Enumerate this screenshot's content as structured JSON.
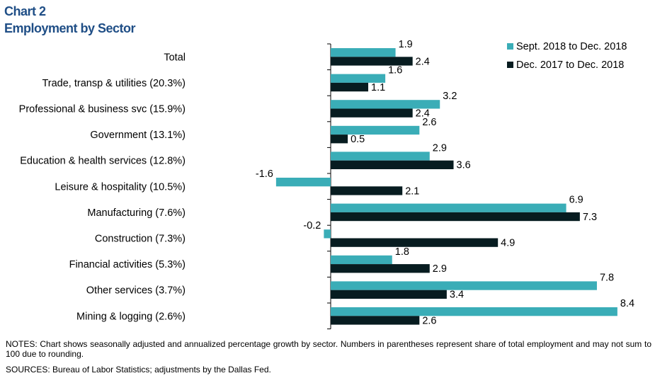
{
  "chart_data": {
    "type": "bar",
    "orientation": "horizontal",
    "title": "Chart 2",
    "subtitle": "Employment by Sector",
    "categories": [
      "Total",
      "Trade, transp & utilities (20.3%)",
      "Professional & business svc (15.9%)",
      "Government (13.1%)",
      "Education & health services (12.8%)",
      "Leisure & hospitality (10.5%)",
      "Manufacturing (7.6%)",
      "Construction (7.3%)",
      "Financial activities (5.3%)",
      "Other services (3.7%)",
      "Mining & logging (2.6%)"
    ],
    "series": [
      {
        "name": "Sept. 2018 to Dec. 2018",
        "color": "#3AADB7",
        "values": [
          1.9,
          1.6,
          3.2,
          2.6,
          2.9,
          -1.6,
          6.9,
          -0.2,
          1.8,
          7.8,
          8.4
        ]
      },
      {
        "name": "Dec. 2017 to Dec. 2018",
        "color": "#071C20",
        "values": [
          2.4,
          1.1,
          2.4,
          0.5,
          3.6,
          2.1,
          7.3,
          4.9,
          2.9,
          3.4,
          2.6
        ]
      }
    ],
    "xlim": [
      -2,
      9
    ],
    "grid": false,
    "legend": "top-right",
    "data_labels": true
  },
  "notes": "NOTES: Chart shows seasonally adjusted and annualized percentage growth by sector. Numbers in parentheses represent share of total employment and may not sum to 100 due to rounding.",
  "sources": "SOURCES: Bureau of Labor Statistics; adjustments by the Dallas Fed."
}
